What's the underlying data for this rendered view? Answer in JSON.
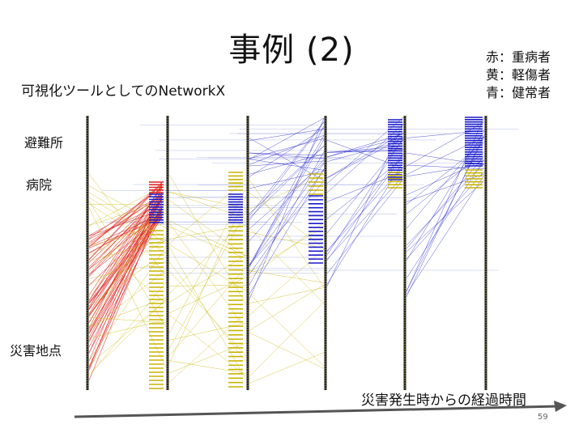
{
  "slide": {
    "title": "事例 (2)",
    "subtitle": "可視化ツールとしてのNetworkX",
    "number": "59"
  },
  "legend": [
    {
      "text": "赤：重病者",
      "color": "#e02020"
    },
    {
      "text": "黄：軽傷者",
      "color": "#c8b400"
    },
    {
      "text": "青：健常者",
      "color": "#1a1acc"
    }
  ],
  "labels": {
    "shelter": "避難所",
    "hospital": "病院",
    "disaster_site": "災害地点",
    "time_axis": "災害発生時からの経過時間"
  },
  "colors": {
    "severe": "#e02020",
    "minor": "#c8b400",
    "healthy": "#1a1acc",
    "axis_line": "#333333",
    "time_arrow": "#555555"
  }
}
